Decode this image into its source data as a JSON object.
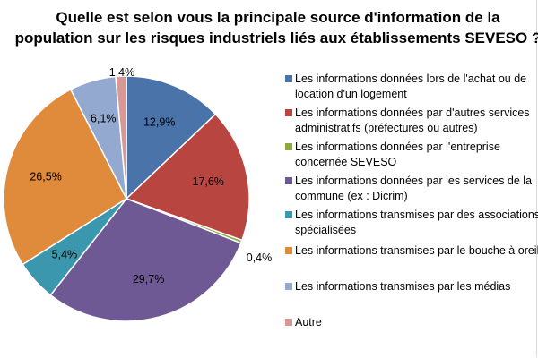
{
  "chart_data": {
    "type": "pie",
    "title_lines": [
      "Quelle est selon vous la principale source d'information de la",
      "population sur les risques industriels liés aux établissements SEVESO ?"
    ],
    "legend_position": "right",
    "slices": [
      {
        "label_lines": [
          "Les informations données lors de l'achat ou de",
          "location d'un logement"
        ],
        "value": 12.9,
        "value_label": "12,9%",
        "color": "#4a73aa",
        "label_inside": true
      },
      {
        "label_lines": [
          "Les informations données par d'autres services",
          "administratifs (préfectures ou autres)"
        ],
        "value": 17.6,
        "value_label": "17,6%",
        "color": "#b8453f",
        "label_inside": true
      },
      {
        "label_lines": [
          "Les informations données par l'entreprise",
          "concernée SEVESO"
        ],
        "value": 0.4,
        "value_label": "0,4%",
        "color": "#8bab3e",
        "label_inside": false
      },
      {
        "label_lines": [
          "Les informations données par les services de la",
          "commune (ex : Dicrim)"
        ],
        "value": 29.7,
        "value_label": "29,7%",
        "color": "#6f5994",
        "label_inside": true
      },
      {
        "label_lines": [
          "Les informations transmises par des associations",
          "spécialisées"
        ],
        "value": 5.4,
        "value_label": "5,4%",
        "color": "#3b97ad",
        "label_inside": true
      },
      {
        "label_lines": [
          "Les informations transmises par le bouche à oreille"
        ],
        "value": 26.5,
        "value_label": "26,5%",
        "color": "#e08a3c",
        "label_inside": true
      },
      {
        "label_lines": [
          "Les informations transmises par les médias"
        ],
        "value": 6.1,
        "value_label": "6,1%",
        "color": "#93a9d0",
        "label_inside": true
      },
      {
        "label_lines": [
          "Autre"
        ],
        "value": 1.4,
        "value_label": "1,4%",
        "color": "#d99795",
        "label_inside": false
      }
    ]
  }
}
